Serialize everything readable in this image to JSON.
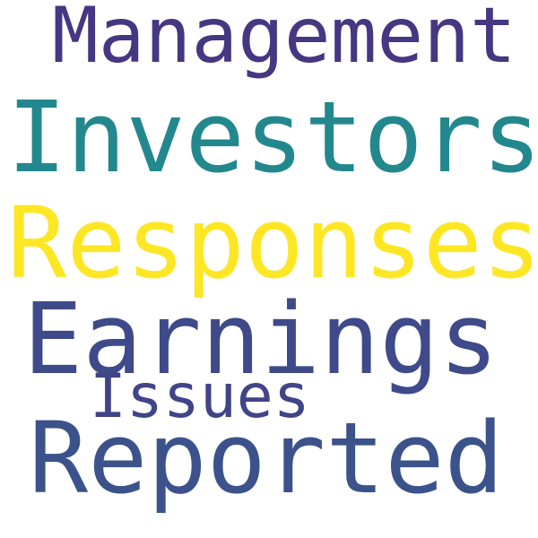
{
  "words": [
    {
      "text": "Management",
      "color": "#453781"
    },
    {
      "text": "Investors",
      "color": "#23888e"
    },
    {
      "text": "Responses",
      "color": "#fde725"
    },
    {
      "text": "Earnings",
      "color": "#3e4a89"
    },
    {
      "text": "Issues",
      "color": "#414487"
    },
    {
      "text": "Reported",
      "color": "#3b528b"
    }
  ]
}
